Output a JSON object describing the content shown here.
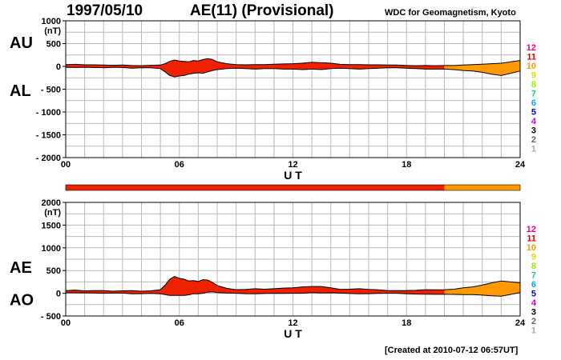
{
  "header": {
    "date": "1997/05/10",
    "title": "AE(11) (Provisional)",
    "org": "WDC for Geomagnetism, Kyoto"
  },
  "footer": "[Created at 2010-07-12 06:57UT]",
  "station_scale": {
    "labels": [
      "12",
      "11",
      "10",
      "9",
      "8",
      "7",
      "6",
      "5",
      "4",
      "3",
      "2",
      "1"
    ],
    "colors": [
      "#ff0080",
      "#e00000",
      "#ff9900",
      "#dddd00",
      "#99ee00",
      "#22cc88",
      "#00aaff",
      "#0000cc",
      "#cc00cc",
      "#000000",
      "#666666",
      "#aaaaaa"
    ]
  },
  "colors": {
    "eleven_stations": "#ee2200",
    "ten_stations": "#ff9900"
  },
  "station_bar": [
    {
      "from": 0,
      "to": 20,
      "stations": 11
    },
    {
      "from": 20,
      "to": 24,
      "stations": 10
    }
  ],
  "chart_data": [
    {
      "type": "area",
      "name": "AU / AL",
      "left_labels": [
        "AU",
        "AL"
      ],
      "ylabel": "(nT)",
      "xlabel": "U T",
      "ylim": [
        -2000,
        1000
      ],
      "yticks": [
        1000,
        500,
        0,
        -500,
        -1000,
        -1500,
        -2000
      ],
      "ytick_labels": [
        "1000",
        "500",
        "0",
        "- 500",
        "- 1000",
        "- 1500",
        "- 2000"
      ],
      "xlim": [
        0,
        24
      ],
      "xticks": [
        "00",
        "06",
        "12",
        "18",
        "24"
      ],
      "x": [
        0,
        0.5,
        1,
        1.5,
        2,
        2.5,
        3,
        3.5,
        4,
        4.5,
        5,
        5.25,
        5.5,
        5.75,
        6,
        6.25,
        6.5,
        6.75,
        7,
        7.25,
        7.5,
        7.75,
        8,
        8.5,
        9,
        9.5,
        10,
        10.5,
        11,
        11.5,
        12,
        12.5,
        13,
        13.5,
        14,
        14.5,
        15,
        15.5,
        16,
        16.5,
        17,
        17.5,
        18,
        18.5,
        19,
        19.5,
        20,
        20.5,
        21,
        21.5,
        22,
        22.5,
        23,
        23.5,
        24
      ],
      "series": [
        {
          "name": "AU",
          "values": [
            40,
            45,
            35,
            35,
            30,
            25,
            30,
            20,
            15,
            25,
            30,
            60,
            110,
            140,
            120,
            110,
            100,
            130,
            120,
            150,
            170,
            150,
            100,
            60,
            40,
            35,
            40,
            40,
            50,
            55,
            60,
            70,
            90,
            80,
            70,
            45,
            40,
            40,
            35,
            35,
            30,
            30,
            20,
            15,
            20,
            15,
            20,
            20,
            30,
            40,
            50,
            60,
            70,
            100,
            130
          ]
        },
        {
          "name": "AL",
          "values": [
            -20,
            -25,
            -20,
            -25,
            -30,
            -20,
            -25,
            -40,
            -30,
            -30,
            -50,
            -120,
            -200,
            -230,
            -210,
            -200,
            -170,
            -150,
            -140,
            -150,
            -120,
            -90,
            -70,
            -50,
            -40,
            -50,
            -60,
            -50,
            -50,
            -60,
            -60,
            -70,
            -60,
            -70,
            -50,
            -40,
            -50,
            -60,
            -50,
            -40,
            -30,
            -30,
            -40,
            -50,
            -60,
            -60,
            -60,
            -70,
            -90,
            -100,
            -130,
            -170,
            -200,
            -150,
            -100
          ]
        }
      ]
    },
    {
      "type": "area",
      "name": "AE / AO",
      "left_labels": [
        "AE",
        "AO"
      ],
      "ylabel": "(nT)",
      "xlabel": "U T",
      "ylim": [
        -500,
        2000
      ],
      "yticks": [
        2000,
        1500,
        1000,
        500,
        0,
        -500
      ],
      "ytick_labels": [
        "2000",
        "1500",
        "1000",
        "500",
        "0",
        "- 500"
      ],
      "xlim": [
        0,
        24
      ],
      "xticks": [
        "00",
        "06",
        "12",
        "18",
        "24"
      ],
      "x": [
        0,
        0.5,
        1,
        1.5,
        2,
        2.5,
        3,
        3.5,
        4,
        4.5,
        5,
        5.25,
        5.5,
        5.75,
        6,
        6.25,
        6.5,
        6.75,
        7,
        7.25,
        7.5,
        7.75,
        8,
        8.5,
        9,
        9.5,
        10,
        10.5,
        11,
        11.5,
        12,
        12.5,
        13,
        13.5,
        14,
        14.5,
        15,
        15.5,
        16,
        16.5,
        17,
        17.5,
        18,
        18.5,
        19,
        19.5,
        20,
        20.5,
        21,
        21.5,
        22,
        22.5,
        23,
        23.5,
        24
      ],
      "series": [
        {
          "name": "AE",
          "values": [
            60,
            70,
            55,
            60,
            60,
            45,
            55,
            60,
            45,
            55,
            80,
            180,
            310,
            370,
            330,
            310,
            270,
            280,
            260,
            300,
            290,
            240,
            170,
            110,
            80,
            85,
            100,
            90,
            100,
            115,
            120,
            140,
            150,
            150,
            120,
            85,
            90,
            100,
            85,
            75,
            60,
            60,
            60,
            65,
            80,
            75,
            80,
            90,
            120,
            140,
            180,
            230,
            270,
            250,
            230
          ]
        },
        {
          "name": "AO",
          "values": [
            10,
            10,
            8,
            5,
            0,
            3,
            3,
            -10,
            -8,
            -3,
            -10,
            -30,
            -45,
            -45,
            -45,
            -45,
            -35,
            -10,
            -10,
            0,
            25,
            30,
            15,
            5,
            0,
            -8,
            -10,
            -5,
            0,
            -3,
            0,
            0,
            15,
            5,
            10,
            3,
            -5,
            -10,
            -8,
            -3,
            0,
            0,
            -10,
            -18,
            -20,
            -23,
            -20,
            -25,
            -30,
            -30,
            -40,
            -55,
            -65,
            -25,
            15
          ]
        }
      ]
    }
  ]
}
